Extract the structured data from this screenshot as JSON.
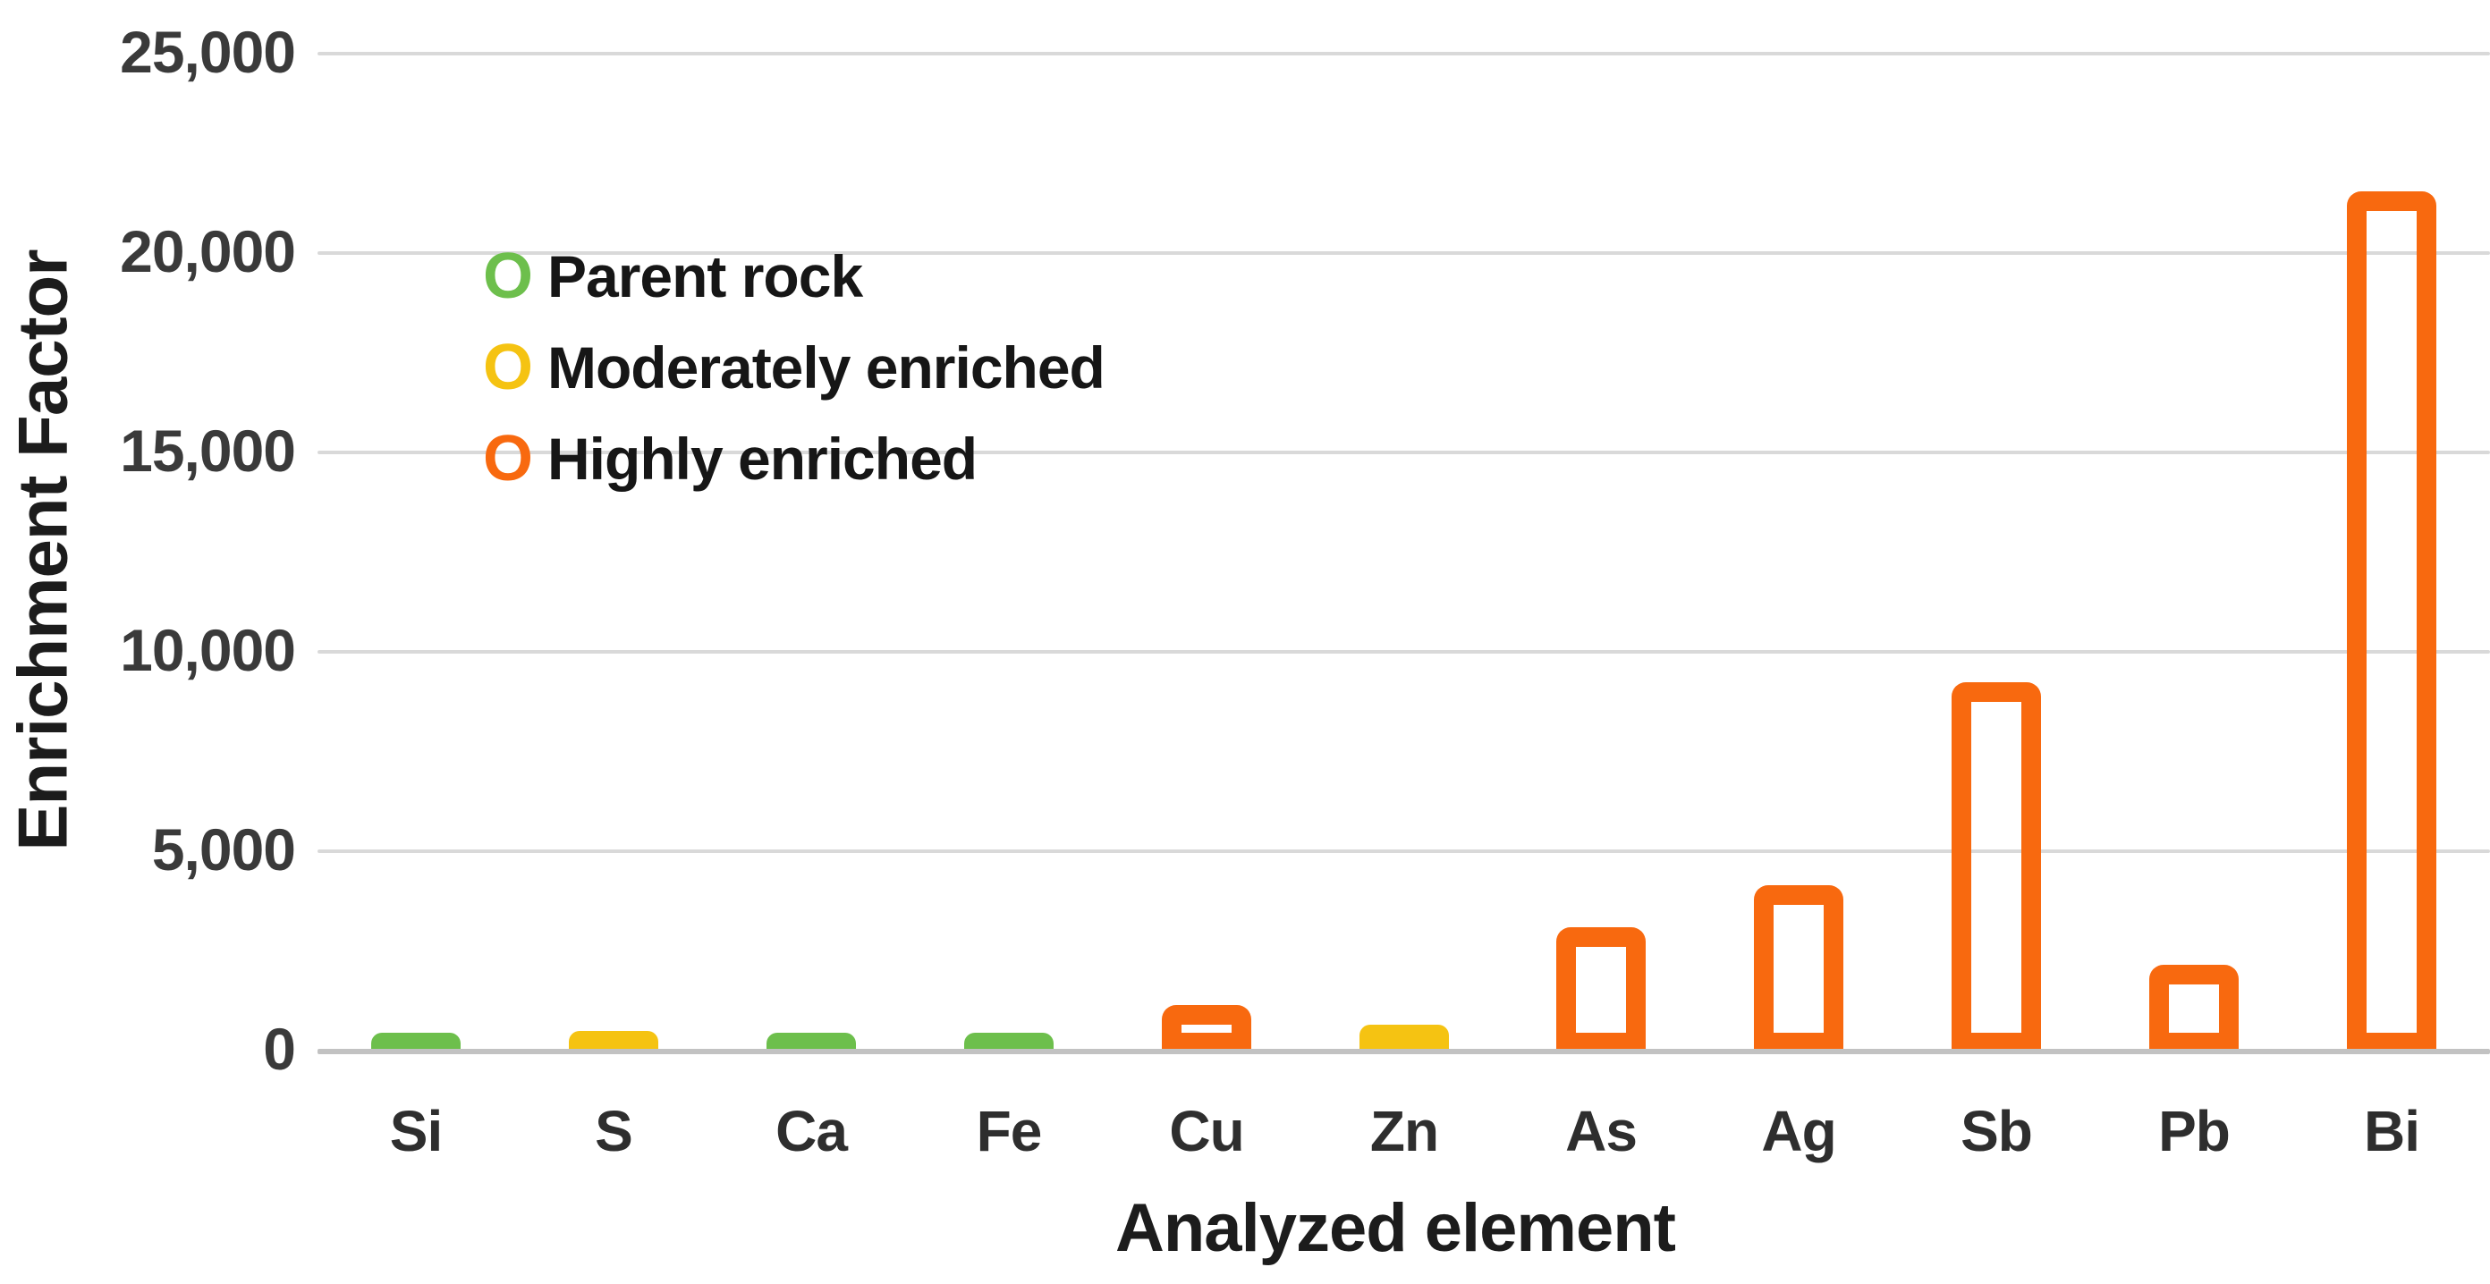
{
  "figure": {
    "background": "#ffffff"
  },
  "colors": {
    "gridline": "#d9d9d9",
    "baseline": "#c2c2c2",
    "tick_text": "#3a3a3a",
    "title_text": "#1c1c1c",
    "green": "#6dbf4c",
    "yellow": "#f5c312",
    "orange": "#f8690f"
  },
  "legend": {
    "entries": [
      {
        "marker": "O",
        "label": "Parent rock",
        "color": "#6dbf4c"
      },
      {
        "marker": "O",
        "label": "Moderately enriched",
        "color": "#f5c312"
      },
      {
        "marker": "O",
        "label": "Highly enriched",
        "color": "#f8690f"
      }
    ]
  },
  "chart_data": {
    "type": "bar",
    "title": "",
    "xlabel": "Analyzed element",
    "ylabel": "Enrichment Factor",
    "categories": [
      "Si",
      "S",
      "Ca",
      "Fe",
      "Cu",
      "Zn",
      "As",
      "Ag",
      "Sb",
      "Pb",
      "Bi"
    ],
    "values": [
      400,
      450,
      400,
      400,
      1100,
      600,
      3050,
      4100,
      9200,
      2100,
      21500
    ],
    "groups": [
      "parent",
      "moderate",
      "parent",
      "parent",
      "high",
      "moderate",
      "high",
      "high",
      "high",
      "high",
      "high"
    ],
    "group_styles": {
      "parent": {
        "legend": "Parent rock",
        "color": "#6dbf4c",
        "fill": "solid"
      },
      "moderate": {
        "legend": "Moderately enriched",
        "color": "#f5c312",
        "fill": "solid"
      },
      "high": {
        "legend": "Highly enriched",
        "color": "#f8690f",
        "fill": "outline"
      }
    },
    "ylim": [
      0,
      25000
    ],
    "yticks": [
      25000,
      20000,
      15000,
      10000,
      5000,
      0
    ],
    "ytick_labels": [
      "25,000",
      "20,000",
      "15,000",
      "10,000",
      "5,000",
      "0"
    ],
    "grid": true,
    "legend_position": "top-left"
  }
}
